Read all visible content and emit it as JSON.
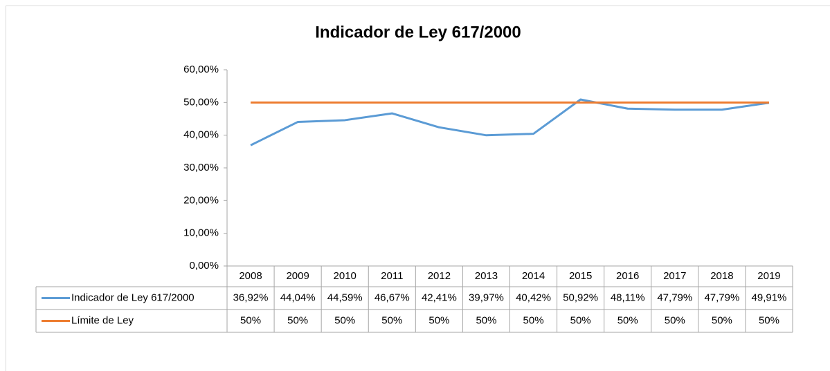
{
  "chart_data": {
    "type": "line",
    "title": "Indicador de Ley 617/2000",
    "categories": [
      "2008",
      "2009",
      "2010",
      "2011",
      "2012",
      "2013",
      "2014",
      "2015",
      "2016",
      "2017",
      "2018",
      "2019"
    ],
    "series": [
      {
        "name": "Indicador de Ley 617/2000",
        "color": "#5b9bd5",
        "values": [
          36.92,
          44.04,
          44.59,
          46.67,
          42.41,
          39.97,
          40.42,
          50.92,
          48.11,
          47.79,
          47.79,
          49.91
        ],
        "value_labels": [
          "36,92%",
          "44,04%",
          "44,59%",
          "46,67%",
          "42,41%",
          "39,97%",
          "40,42%",
          "50,92%",
          "48,11%",
          "47,79%",
          "47,79%",
          "49,91%"
        ]
      },
      {
        "name": "Límite de Ley",
        "color": "#ed7d31",
        "values": [
          50,
          50,
          50,
          50,
          50,
          50,
          50,
          50,
          50,
          50,
          50,
          50
        ],
        "value_labels": [
          "50%",
          "50%",
          "50%",
          "50%",
          "50%",
          "50%",
          "50%",
          "50%",
          "50%",
          "50%",
          "50%",
          "50%"
        ]
      }
    ],
    "ylim": [
      0,
      60
    ],
    "yticks": [
      {
        "value": 0,
        "label": "0,00%"
      },
      {
        "value": 10,
        "label": "10,00%"
      },
      {
        "value": 20,
        "label": "20,00%"
      },
      {
        "value": 30,
        "label": "30,00%"
      },
      {
        "value": 40,
        "label": "40,00%"
      },
      {
        "value": 50,
        "label": "50,00%"
      },
      {
        "value": 60,
        "label": "60,00%"
      }
    ],
    "grid": false
  }
}
